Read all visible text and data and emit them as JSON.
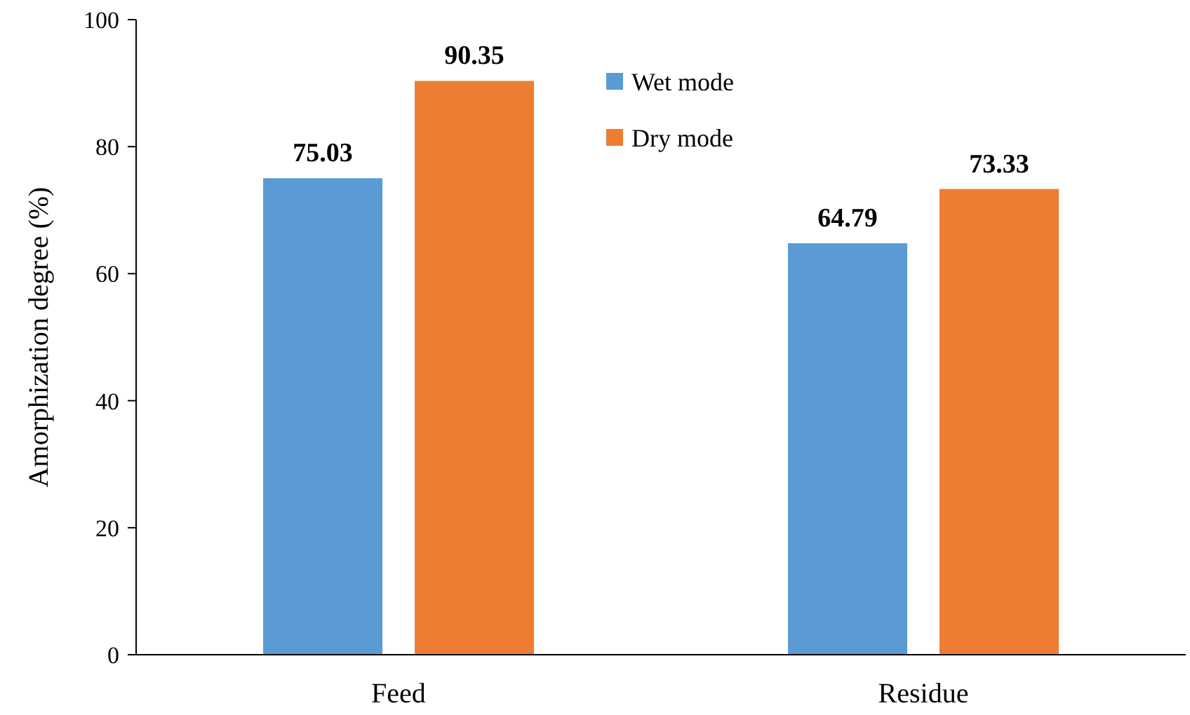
{
  "chart_data": {
    "type": "bar",
    "ylabel": "Amorphization degree (%)",
    "categories": [
      "Feed",
      "Residue"
    ],
    "series": [
      {
        "name": "Wet mode",
        "color": "#5b9bd5",
        "values": [
          75.03,
          64.79
        ]
      },
      {
        "name": "Dry mode",
        "color": "#ed7d31",
        "values": [
          90.35,
          73.33
        ]
      }
    ],
    "ylim": [
      0,
      100
    ],
    "yticks": [
      0,
      20,
      40,
      60,
      80,
      100
    ],
    "grid": false,
    "legend": "top",
    "data_labels": true
  }
}
